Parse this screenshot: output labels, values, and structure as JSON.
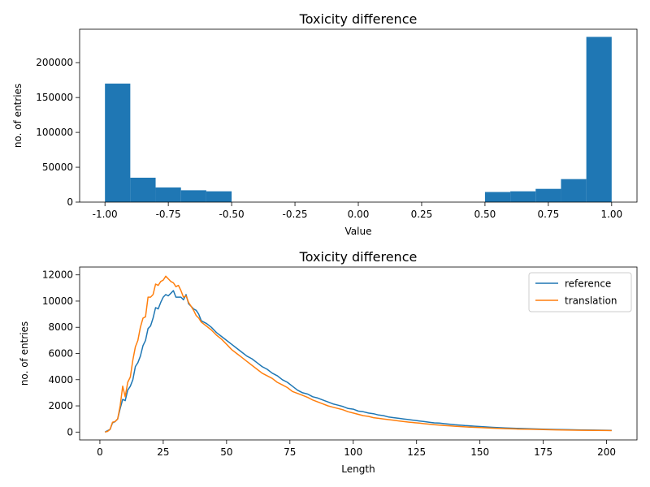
{
  "chart_data": [
    {
      "type": "bar",
      "title": "Toxicity difference",
      "xlabel": "Value",
      "ylabel": "no. of entries",
      "xlim": [
        -1.1,
        1.1
      ],
      "ylim": [
        0,
        248000
      ],
      "xticks": [
        "-1.00",
        "-0.75",
        "-0.50",
        "-0.25",
        "0.00",
        "0.25",
        "0.50",
        "0.75",
        "1.00"
      ],
      "xtick_values": [
        -1.0,
        -0.75,
        -0.5,
        -0.25,
        0.0,
        0.25,
        0.5,
        0.75,
        1.0
      ],
      "yticks": [
        "0",
        "50000",
        "100000",
        "150000",
        "200000"
      ],
      "ytick_values": [
        0,
        50000,
        100000,
        150000,
        200000
      ],
      "bins": [
        {
          "x0": -1.0,
          "x1": -0.9,
          "value": 170000
        },
        {
          "x0": -0.9,
          "x1": -0.8,
          "value": 35000
        },
        {
          "x0": -0.8,
          "x1": -0.7,
          "value": 21000
        },
        {
          "x0": -0.7,
          "x1": -0.6,
          "value": 17000
        },
        {
          "x0": -0.6,
          "x1": -0.5,
          "value": 15500
        },
        {
          "x0": 0.5,
          "x1": 0.6,
          "value": 14500
        },
        {
          "x0": 0.6,
          "x1": 0.7,
          "value": 15500
        },
        {
          "x0": 0.7,
          "x1": 0.8,
          "value": 19000
        },
        {
          "x0": 0.8,
          "x1": 0.9,
          "value": 33000
        },
        {
          "x0": 0.9,
          "x1": 1.0,
          "value": 237000
        }
      ],
      "color": "#1f77b4"
    },
    {
      "type": "line",
      "title": "Toxicity difference",
      "xlabel": "Length",
      "ylabel": "no. of entries",
      "xlim": [
        -8,
        212
      ],
      "ylim": [
        -600,
        12600
      ],
      "xticks": [
        "0",
        "25",
        "50",
        "75",
        "100",
        "125",
        "150",
        "175",
        "200"
      ],
      "xtick_values": [
        0,
        25,
        50,
        75,
        100,
        125,
        150,
        175,
        200
      ],
      "yticks": [
        "0",
        "2000",
        "4000",
        "6000",
        "8000",
        "10000",
        "12000"
      ],
      "ytick_values": [
        0,
        2000,
        4000,
        6000,
        8000,
        10000,
        12000
      ],
      "legend_position": "top-right",
      "series": [
        {
          "name": "reference",
          "color": "#1f77b4",
          "points": [
            [
              2,
              0
            ],
            [
              3,
              100
            ],
            [
              4,
              200
            ],
            [
              5,
              700
            ],
            [
              6,
              800
            ],
            [
              7,
              1000
            ],
            [
              8,
              1800
            ],
            [
              9,
              2500
            ],
            [
              10,
              2400
            ],
            [
              11,
              3200
            ],
            [
              12,
              3500
            ],
            [
              13,
              4000
            ],
            [
              14,
              5000
            ],
            [
              15,
              5300
            ],
            [
              16,
              5800
            ],
            [
              17,
              6600
            ],
            [
              18,
              7000
            ],
            [
              19,
              7900
            ],
            [
              20,
              8100
            ],
            [
              21,
              8700
            ],
            [
              22,
              9500
            ],
            [
              23,
              9400
            ],
            [
              24,
              9900
            ],
            [
              25,
              10300
            ],
            [
              26,
              10500
            ],
            [
              27,
              10400
            ],
            [
              28,
              10600
            ],
            [
              29,
              10800
            ],
            [
              30,
              10300
            ],
            [
              31,
              10300
            ],
            [
              32,
              10300
            ],
            [
              33,
              10100
            ],
            [
              34,
              10500
            ],
            [
              35,
              9800
            ],
            [
              36,
              9600
            ],
            [
              37,
              9400
            ],
            [
              38,
              9300
            ],
            [
              39,
              9000
            ],
            [
              40,
              8500
            ],
            [
              42,
              8300
            ],
            [
              44,
              8000
            ],
            [
              46,
              7600
            ],
            [
              48,
              7300
            ],
            [
              50,
              7000
            ],
            [
              52,
              6700
            ],
            [
              54,
              6400
            ],
            [
              56,
              6100
            ],
            [
              58,
              5800
            ],
            [
              60,
              5600
            ],
            [
              62,
              5300
            ],
            [
              64,
              5000
            ],
            [
              66,
              4800
            ],
            [
              68,
              4500
            ],
            [
              70,
              4300
            ],
            [
              72,
              4000
            ],
            [
              74,
              3800
            ],
            [
              76,
              3500
            ],
            [
              78,
              3200
            ],
            [
              80,
              3000
            ],
            [
              82,
              2900
            ],
            [
              84,
              2700
            ],
            [
              86,
              2600
            ],
            [
              88,
              2450
            ],
            [
              90,
              2300
            ],
            [
              92,
              2150
            ],
            [
              94,
              2050
            ],
            [
              96,
              1950
            ],
            [
              98,
              1800
            ],
            [
              100,
              1750
            ],
            [
              102,
              1600
            ],
            [
              104,
              1550
            ],
            [
              106,
              1450
            ],
            [
              108,
              1400
            ],
            [
              110,
              1300
            ],
            [
              112,
              1250
            ],
            [
              114,
              1150
            ],
            [
              116,
              1100
            ],
            [
              118,
              1050
            ],
            [
              120,
              1000
            ],
            [
              122,
              950
            ],
            [
              124,
              900
            ],
            [
              126,
              850
            ],
            [
              128,
              800
            ],
            [
              130,
              750
            ],
            [
              132,
              700
            ],
            [
              134,
              680
            ],
            [
              136,
              640
            ],
            [
              138,
              600
            ],
            [
              140,
              560
            ],
            [
              142,
              530
            ],
            [
              144,
              500
            ],
            [
              146,
              480
            ],
            [
              148,
              450
            ],
            [
              150,
              420
            ],
            [
              155,
              360
            ],
            [
              160,
              320
            ],
            [
              165,
              280
            ],
            [
              170,
              250
            ],
            [
              175,
              220
            ],
            [
              180,
              200
            ],
            [
              185,
              180
            ],
            [
              190,
              160
            ],
            [
              195,
              150
            ],
            [
              200,
              140
            ],
            [
              202,
              130
            ]
          ]
        },
        {
          "name": "translation",
          "color": "#ff7f0e",
          "points": [
            [
              2,
              0
            ],
            [
              3,
              50
            ],
            [
              4,
              200
            ],
            [
              5,
              750
            ],
            [
              6,
              800
            ],
            [
              7,
              1000
            ],
            [
              8,
              2000
            ],
            [
              9,
              3500
            ],
            [
              10,
              2700
            ],
            [
              11,
              3800
            ],
            [
              12,
              4200
            ],
            [
              13,
              5500
            ],
            [
              14,
              6500
            ],
            [
              15,
              7000
            ],
            [
              16,
              8000
            ],
            [
              17,
              8700
            ],
            [
              18,
              8800
            ],
            [
              19,
              10300
            ],
            [
              20,
              10300
            ],
            [
              21,
              10500
            ],
            [
              22,
              11300
            ],
            [
              23,
              11200
            ],
            [
              24,
              11500
            ],
            [
              25,
              11600
            ],
            [
              26,
              11900
            ],
            [
              27,
              11700
            ],
            [
              28,
              11500
            ],
            [
              29,
              11400
            ],
            [
              30,
              11100
            ],
            [
              31,
              11200
            ],
            [
              32,
              10800
            ],
            [
              33,
              10300
            ],
            [
              34,
              10400
            ],
            [
              35,
              9900
            ],
            [
              36,
              9600
            ],
            [
              37,
              9300
            ],
            [
              38,
              8900
            ],
            [
              39,
              8700
            ],
            [
              40,
              8400
            ],
            [
              42,
              8100
            ],
            [
              44,
              7800
            ],
            [
              46,
              7400
            ],
            [
              48,
              7100
            ],
            [
              50,
              6700
            ],
            [
              52,
              6300
            ],
            [
              54,
              6000
            ],
            [
              56,
              5700
            ],
            [
              58,
              5400
            ],
            [
              60,
              5100
            ],
            [
              62,
              4800
            ],
            [
              64,
              4500
            ],
            [
              66,
              4300
            ],
            [
              68,
              4100
            ],
            [
              70,
              3800
            ],
            [
              72,
              3600
            ],
            [
              74,
              3400
            ],
            [
              76,
              3100
            ],
            [
              78,
              2950
            ],
            [
              80,
              2800
            ],
            [
              82,
              2650
            ],
            [
              84,
              2450
            ],
            [
              86,
              2300
            ],
            [
              88,
              2150
            ],
            [
              90,
              2000
            ],
            [
              92,
              1900
            ],
            [
              94,
              1800
            ],
            [
              96,
              1700
            ],
            [
              98,
              1550
            ],
            [
              100,
              1450
            ],
            [
              102,
              1350
            ],
            [
              104,
              1250
            ],
            [
              106,
              1200
            ],
            [
              108,
              1100
            ],
            [
              110,
              1050
            ],
            [
              112,
              1000
            ],
            [
              114,
              950
            ],
            [
              116,
              900
            ],
            [
              118,
              850
            ],
            [
              120,
              800
            ],
            [
              122,
              760
            ],
            [
              124,
              720
            ],
            [
              126,
              680
            ],
            [
              128,
              640
            ],
            [
              130,
              600
            ],
            [
              132,
              560
            ],
            [
              134,
              530
            ],
            [
              136,
              500
            ],
            [
              138,
              480
            ],
            [
              140,
              450
            ],
            [
              142,
              420
            ],
            [
              144,
              400
            ],
            [
              146,
              380
            ],
            [
              148,
              360
            ],
            [
              150,
              340
            ],
            [
              155,
              300
            ],
            [
              160,
              260
            ],
            [
              165,
              230
            ],
            [
              170,
              210
            ],
            [
              175,
              190
            ],
            [
              180,
              170
            ],
            [
              185,
              150
            ],
            [
              190,
              140
            ],
            [
              195,
              130
            ],
            [
              200,
              120
            ],
            [
              202,
              110
            ]
          ]
        }
      ]
    }
  ]
}
